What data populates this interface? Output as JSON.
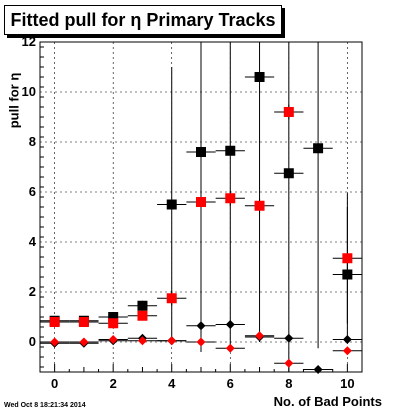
{
  "chart_data": {
    "type": "scatter",
    "title": "Fitted pull for η Primary Tracks",
    "xlabel": "No. of Bad Points",
    "ylabel": "pull for η",
    "xlim": [
      -0.5,
      10.5
    ],
    "ylim": [
      -1.2,
      12.0
    ],
    "xticks": [
      0,
      2,
      4,
      6,
      8,
      10
    ],
    "yticks": [
      0,
      2,
      4,
      6,
      8,
      10,
      12
    ],
    "grid": true,
    "series": [
      {
        "label": "",
        "color": "#000000",
        "marker": "square",
        "points": [
          {
            "x": 0,
            "y": 0.85,
            "yerr": 0.1
          },
          {
            "x": 1,
            "y": 0.85,
            "yerr": 0.1
          },
          {
            "x": 2,
            "y": 1.0,
            "yerr": 0.12
          },
          {
            "x": 3,
            "y": 1.45,
            "yerr": 0.2
          },
          {
            "x": 4,
            "y": 5.5,
            "yerr": 5.5
          },
          {
            "x": 5,
            "y": 7.6,
            "yerr": 8.0
          },
          {
            "x": 6,
            "y": 7.65,
            "yerr": 8.0
          },
          {
            "x": 7,
            "y": 10.6,
            "yerr": 10.6
          },
          {
            "x": 8,
            "y": 6.75,
            "yerr": 8.0
          },
          {
            "x": 9,
            "y": 7.75,
            "yerr": 8.0
          },
          {
            "x": 10,
            "y": 2.7,
            "yerr": 2.7
          }
        ]
      },
      {
        "label": "",
        "color": "#ff0000",
        "marker": "square",
        "points": [
          {
            "x": 0,
            "y": 0.8,
            "yerr": 0.08
          },
          {
            "x": 1,
            "y": 0.8,
            "yerr": 0.08
          },
          {
            "x": 2,
            "y": 0.75,
            "yerr": 0.1
          },
          {
            "x": 3,
            "y": 1.05,
            "yerr": 0.15
          },
          {
            "x": 4,
            "y": 1.75,
            "yerr": 0.3
          },
          {
            "x": 5,
            "y": 5.6,
            "yerr": 0.3
          },
          {
            "x": 6,
            "y": 5.75,
            "yerr": 0.3
          },
          {
            "x": 7,
            "y": 5.45,
            "yerr": 0.3
          },
          {
            "x": 8,
            "y": 9.2,
            "yerr": 0.3
          },
          {
            "x": 10,
            "y": 3.35,
            "yerr": 2.6
          }
        ]
      },
      {
        "label": "",
        "color": "#000000",
        "marker": "diamond",
        "points": [
          {
            "x": 0,
            "y": -0.05,
            "yerr": 0.05
          },
          {
            "x": 1,
            "y": -0.05,
            "yerr": 0.05
          },
          {
            "x": 2,
            "y": 0.05,
            "yerr": 0.06
          },
          {
            "x": 3,
            "y": 0.15,
            "yerr": 0.08
          },
          {
            "x": 4,
            "y": 0.05,
            "yerr": 0.1
          },
          {
            "x": 5,
            "y": 0.65,
            "yerr": 0.1
          },
          {
            "x": 6,
            "y": 0.7,
            "yerr": 0.1
          },
          {
            "x": 7,
            "y": 0.2,
            "yerr": 0.1
          },
          {
            "x": 8,
            "y": 0.15,
            "yerr": 0.1
          },
          {
            "x": 9,
            "y": -1.1,
            "yerr": 0.1
          },
          {
            "x": 10,
            "y": 0.1,
            "yerr": 0.1
          }
        ]
      },
      {
        "label": "",
        "color": "#ff0000",
        "marker": "diamond",
        "points": [
          {
            "x": 0,
            "y": 0.0,
            "yerr": 0.05
          },
          {
            "x": 1,
            "y": 0.0,
            "yerr": 0.05
          },
          {
            "x": 2,
            "y": 0.1,
            "yerr": 0.06
          },
          {
            "x": 3,
            "y": 0.05,
            "yerr": 0.08
          },
          {
            "x": 4,
            "y": 0.05,
            "yerr": 0.1
          },
          {
            "x": 5,
            "y": 0.0,
            "yerr": 0.1
          },
          {
            "x": 6,
            "y": -0.25,
            "yerr": 0.1
          },
          {
            "x": 7,
            "y": 0.25,
            "yerr": 0.1
          },
          {
            "x": 8,
            "y": -0.85,
            "yerr": 0.1
          },
          {
            "x": 10,
            "y": -0.35,
            "yerr": 0.1
          }
        ]
      }
    ]
  },
  "footer_text": "Wed Oct  8 18:21:34 2014"
}
